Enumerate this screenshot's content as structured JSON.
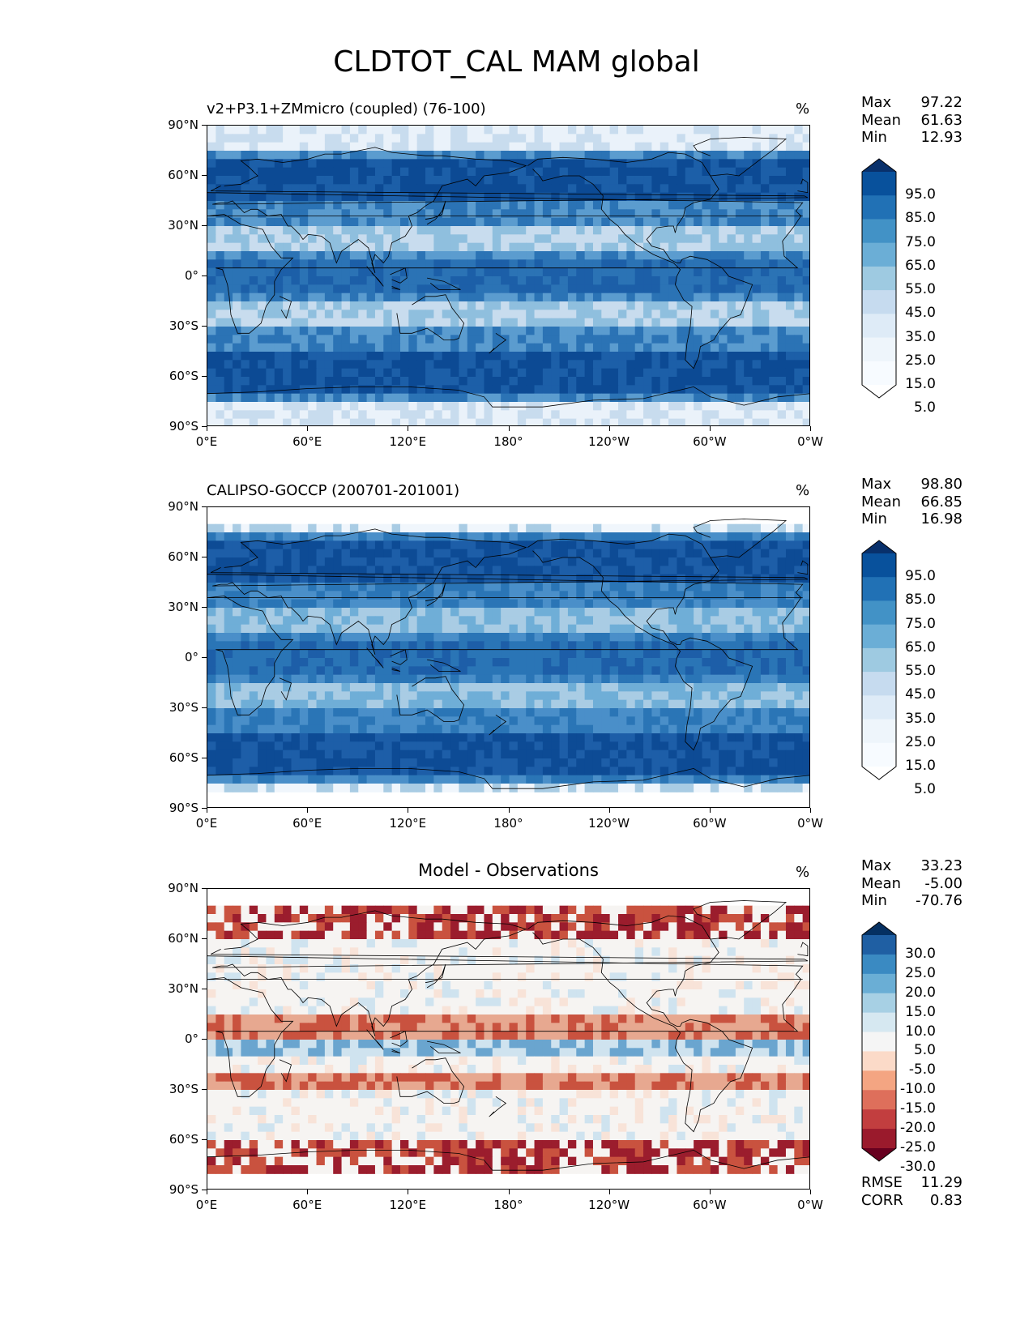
{
  "figure": {
    "title": "CLDTOT_CAL MAM global"
  },
  "axes": {
    "lat_ticks": [
      "90°N",
      "60°N",
      "30°N",
      "0°",
      "30°S",
      "60°S",
      "90°S"
    ],
    "lon_ticks": [
      "0°E",
      "60°E",
      "120°E",
      "180°",
      "120°W",
      "60°W",
      "0°W"
    ]
  },
  "panels": [
    {
      "title": "v2+P3.1+ZMmicro (coupled) (76-100)",
      "units": "%",
      "stats": [
        {
          "label": "Max",
          "value": "97.22"
        },
        {
          "label": "Mean",
          "value": "61.63"
        },
        {
          "label": "Min",
          "value": "12.93"
        }
      ],
      "colorbar": {
        "labels": [
          "95.0",
          "85.0",
          "75.0",
          "65.0",
          "55.0",
          "45.0",
          "35.0",
          "25.0",
          "15.0",
          "5.0"
        ],
        "colors": [
          "#08306b",
          "#08519c",
          "#2171b5",
          "#4292c6",
          "#6baed6",
          "#9ecae1",
          "#c6dbef",
          "#deebf7",
          "#eef5fb",
          "#f7fbff",
          "#ffffff"
        ]
      }
    },
    {
      "title": "CALIPSO-GOCCP (200701-201001)",
      "units": "%",
      "stats": [
        {
          "label": "Max",
          "value": "98.80"
        },
        {
          "label": "Mean",
          "value": "66.85"
        },
        {
          "label": "Min",
          "value": "16.98"
        }
      ],
      "colorbar": {
        "labels": [
          "95.0",
          "85.0",
          "75.0",
          "65.0",
          "55.0",
          "45.0",
          "35.0",
          "25.0",
          "15.0",
          "5.0"
        ],
        "colors": [
          "#08306b",
          "#08519c",
          "#2171b5",
          "#4292c6",
          "#6baed6",
          "#9ecae1",
          "#c6dbef",
          "#deebf7",
          "#eef5fb",
          "#f7fbff",
          "#ffffff"
        ]
      }
    },
    {
      "title": "Model - Observations",
      "units": "%",
      "stats": [
        {
          "label": "Max",
          "value": "33.23"
        },
        {
          "label": "Mean",
          "value": "-5.00"
        },
        {
          "label": "Min",
          "value": "-70.76"
        }
      ],
      "colorbar": {
        "labels": [
          "30.0",
          "25.0",
          "20.0",
          "15.0",
          "10.0",
          "5.0",
          "-5.0",
          "-10.0",
          "-15.0",
          "-20.0",
          "-25.0",
          "-30.0"
        ],
        "colors": [
          "#053061",
          "#1f5fa3",
          "#3a8ac2",
          "#6aaed5",
          "#a7d0e4",
          "#d6e8f1",
          "#f5f5f5",
          "#fbdac8",
          "#f4a582",
          "#de6f5b",
          "#c23e3f",
          "#9a1a2c",
          "#67001f"
        ]
      },
      "error_stats": [
        {
          "label": "RMSE",
          "value": "11.29"
        },
        {
          "label": "CORR",
          "value": "0.83"
        }
      ]
    }
  ],
  "map_palette": {
    "model": [
      "#2b73b5",
      "#5b9ccf",
      "#1c5fa8",
      "#0c4a94",
      "#c8dcee",
      "#8fbfde",
      "#eaf2fa"
    ],
    "obs": [
      "#2a75b6",
      "#4a8fc9",
      "#1d5ea8",
      "#0d4b95",
      "#a9cce4",
      "#6faed7",
      "#f0f6fc"
    ],
    "diff": [
      "#f6f4f2",
      "#e7a890",
      "#c9523f",
      "#9b1d2d",
      "#cfe3ef",
      "#6aa5cf",
      "#f8e3d8"
    ]
  }
}
